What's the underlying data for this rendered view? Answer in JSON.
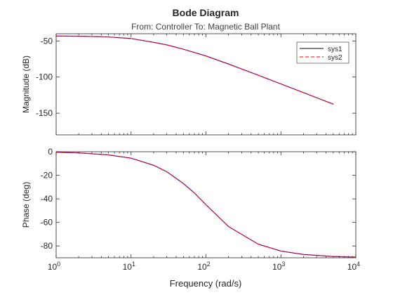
{
  "chart_data": {
    "type": "line",
    "title": "Bode Diagram",
    "subtitle": "From: Controller  To: Magnetic Ball Plant",
    "xlabel": "Frequency (rad/s)",
    "xscale": "log",
    "xlim": [
      1,
      10000
    ],
    "x_ticks": [
      1,
      10,
      100,
      1000,
      10000
    ],
    "x_tick_labels": [
      {
        "base": "10",
        "exp": "0"
      },
      {
        "base": "10",
        "exp": "1"
      },
      {
        "base": "10",
        "exp": "2"
      },
      {
        "base": "10",
        "exp": "3"
      },
      {
        "base": "10",
        "exp": "4"
      }
    ],
    "legend": {
      "location": "top-right",
      "entries": [
        "sys1",
        "sys2"
      ]
    },
    "series_styles": [
      {
        "name": "sys1",
        "color": "#0000ff",
        "dash": "solid",
        "legend_color": "#000000"
      },
      {
        "name": "sys2",
        "color": "#ff0000",
        "dash": "dashed",
        "legend_color": "#ff0000"
      }
    ],
    "panels": [
      {
        "id": "magnitude",
        "ylabel": "Magnitude (dB)",
        "ylim": [
          -180,
          -40
        ],
        "y_ticks": [
          -50,
          -100,
          -150
        ],
        "y_tick_labels": [
          "-50",
          "-100",
          "-150"
        ],
        "x": [
          1,
          2,
          5,
          10,
          20,
          30,
          50,
          70,
          100,
          200,
          500,
          1000,
          2000,
          5000
        ],
        "series": [
          {
            "name": "sys1",
            "values": [
              -43.2,
              -43.5,
              -44.5,
              -46.7,
              -52,
              -55.5,
              -61.5,
              -66,
              -70.8,
              -82,
              -97.5,
              -109.5,
              -121.5,
              -137.5
            ]
          },
          {
            "name": "sys2",
            "values": [
              -43.2,
              -43.5,
              -44.5,
              -46.7,
              -52,
              -55.5,
              -61.5,
              -66,
              -70.8,
              -82,
              -97.5,
              -109.5,
              -121.5,
              -137.5
            ]
          }
        ]
      },
      {
        "id": "phase",
        "ylabel": "Phase (deg)",
        "ylim": [
          -90,
          0
        ],
        "y_ticks": [
          0,
          -20,
          -40,
          -60,
          -80
        ],
        "y_tick_labels": [
          "0",
          "-20",
          "-40",
          "-60",
          "-80"
        ],
        "x": [
          1,
          2,
          5,
          10,
          20,
          30,
          50,
          70,
          100,
          200,
          500,
          1000,
          2000,
          5000,
          10000
        ],
        "series": [
          {
            "name": "sys1",
            "values": [
              -0.5,
              -1,
              -2.7,
              -5.5,
              -11.5,
              -17,
              -27,
              -35,
              -45,
              -63.5,
              -78.5,
              -84.3,
              -87.2,
              -88.9,
              -89.4
            ]
          },
          {
            "name": "sys2",
            "values": [
              -0.5,
              -1,
              -2.7,
              -5.5,
              -11.5,
              -17,
              -27,
              -35,
              -45,
              -63.5,
              -78.5,
              -84.3,
              -87.2,
              -88.9,
              -89.4
            ]
          }
        ]
      }
    ]
  }
}
